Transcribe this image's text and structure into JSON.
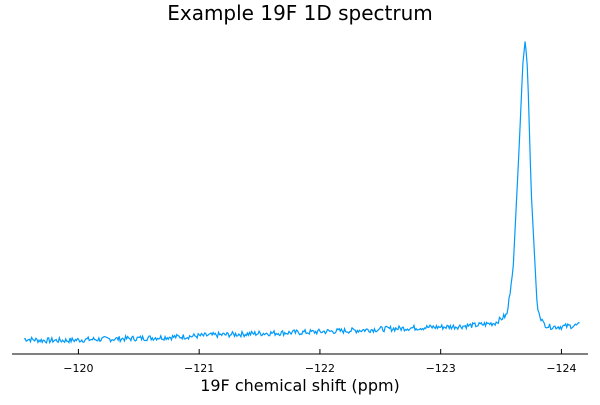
{
  "chart_data": {
    "type": "line",
    "title": "Example 19F 1D spectrum",
    "xlabel": "19F chemical shift (ppm)",
    "ylabel": "",
    "x_reversed": true,
    "xlim": [
      -119.45,
      -124.22
    ],
    "xticks": [
      -120,
      -121,
      -122,
      -123,
      -124
    ],
    "xtick_labels": [
      "−120",
      "−121",
      "−122",
      "−123",
      "−124"
    ],
    "yaxis_visible": false,
    "grid": false,
    "legend": "none",
    "series": [
      {
        "color": "#009AFA",
        "peak": {
          "position_ppm": -123.7,
          "relative_height": 1.0
        },
        "x": [
          -119.55,
          -119.7,
          -119.9,
          -120.1,
          -120.3,
          -120.5,
          -120.7,
          -120.9,
          -121.1,
          -121.3,
          -121.5,
          -121.7,
          -121.9,
          -122.1,
          -122.3,
          -122.5,
          -122.7,
          -122.9,
          -123.1,
          -123.3,
          -123.45,
          -123.55,
          -123.6,
          -123.65,
          -123.68,
          -123.7,
          -123.72,
          -123.75,
          -123.8,
          -123.85,
          -123.9,
          -124.0,
          -124.15
        ],
        "y": [
          0.02,
          0.015,
          0.015,
          0.018,
          0.02,
          0.022,
          0.025,
          0.028,
          0.032,
          0.035,
          0.038,
          0.04,
          0.042,
          0.045,
          0.048,
          0.052,
          0.055,
          0.058,
          0.06,
          0.065,
          0.072,
          0.1,
          0.25,
          0.65,
          0.92,
          1.0,
          0.9,
          0.5,
          0.12,
          0.07,
          0.06,
          0.06,
          0.065
        ]
      }
    ]
  }
}
